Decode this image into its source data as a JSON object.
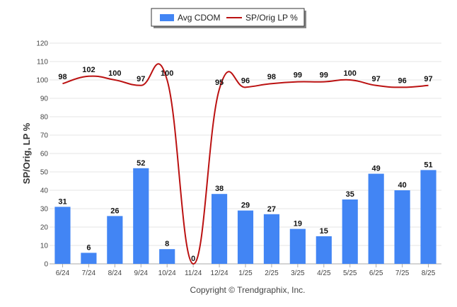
{
  "chart_data": {
    "type": "bar",
    "categories": [
      "6/24",
      "7/24",
      "8/24",
      "9/24",
      "10/24",
      "11/24",
      "12/24",
      "1/25",
      "2/25",
      "3/25",
      "4/25",
      "5/25",
      "6/25",
      "7/25",
      "8/25"
    ],
    "series": [
      {
        "name": "Avg CDOM",
        "type": "bar",
        "color": "#4285f4",
        "values": [
          31,
          6,
          26,
          52,
          8,
          0,
          38,
          29,
          27,
          19,
          15,
          35,
          49,
          40,
          51
        ]
      },
      {
        "name": "SP/Orig LP %",
        "type": "line",
        "color": "#bb1111",
        "values": [
          98,
          102,
          100,
          97,
          100,
          0,
          95,
          96,
          98,
          99,
          99,
          100,
          97,
          96,
          97
        ]
      }
    ],
    "ylabel": "SP/Orig, LP %",
    "xlabel": "",
    "ylim": [
      0,
      120
    ],
    "yticks": [
      0,
      10,
      20,
      30,
      40,
      50,
      60,
      70,
      80,
      90,
      100,
      110,
      120
    ],
    "grid": true,
    "legend": "top-center"
  },
  "footer": {
    "copyright": "Copyright © Trendgraphix, Inc."
  }
}
